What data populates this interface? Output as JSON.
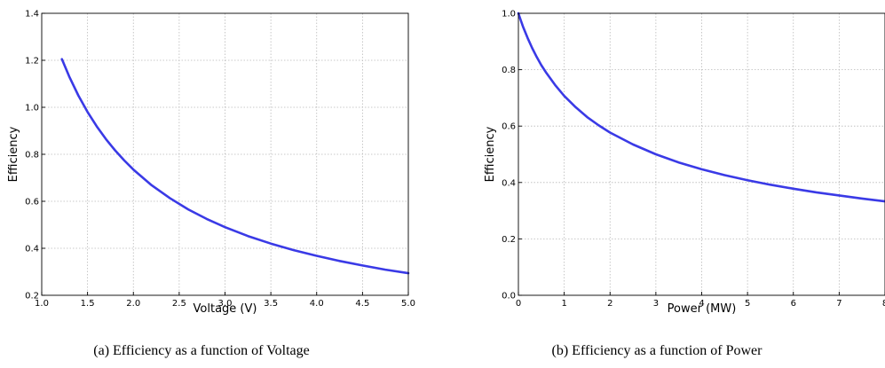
{
  "chart_data": [
    {
      "type": "line",
      "xlabel": "Voltage (V)",
      "ylabel": "Efficiency",
      "caption": "(a)  Efficiency as a function of Voltage",
      "xlim": [
        1.0,
        5.0
      ],
      "ylim": [
        0.2,
        1.4
      ],
      "xticks": [
        "1.0",
        "1.5",
        "2.0",
        "2.5",
        "3.0",
        "3.5",
        "4.0",
        "4.5",
        "5.0"
      ],
      "yticks": [
        "0.2",
        "0.4",
        "0.6",
        "0.8",
        "1.0",
        "1.2",
        "1.4"
      ],
      "grid": true,
      "series": [
        {
          "color": "#3a3ae6",
          "x": [
            1.22,
            1.3,
            1.4,
            1.5,
            1.6,
            1.7,
            1.8,
            1.9,
            2.0,
            2.2,
            2.4,
            2.6,
            2.8,
            3.0,
            3.25,
            3.5,
            3.75,
            4.0,
            4.25,
            4.5,
            4.75,
            5.0
          ],
          "y": [
            1.205,
            1.131,
            1.05,
            0.98,
            0.919,
            0.865,
            0.817,
            0.774,
            0.735,
            0.668,
            0.613,
            0.565,
            0.525,
            0.49,
            0.452,
            0.42,
            0.392,
            0.368,
            0.346,
            0.327,
            0.309,
            0.294
          ]
        }
      ]
    },
    {
      "type": "line",
      "xlabel": "Power (MW)",
      "ylabel": "Efficiency",
      "caption": "(b)  Efficiency as a function of Power",
      "xlim": [
        0,
        8
      ],
      "ylim": [
        0.0,
        1.0
      ],
      "xticks": [
        "0",
        "1",
        "2",
        "3",
        "4",
        "5",
        "6",
        "7",
        "8"
      ],
      "yticks": [
        "0.0",
        "0.2",
        "0.4",
        "0.6",
        "0.8",
        "1.0"
      ],
      "grid": true,
      "series": [
        {
          "color": "#3a3ae6",
          "x": [
            0.0,
            0.05,
            0.1,
            0.2,
            0.3,
            0.4,
            0.5,
            0.6,
            0.8,
            1.0,
            1.25,
            1.5,
            1.75,
            2.0,
            2.5,
            3.0,
            3.5,
            4.0,
            4.5,
            5.0,
            5.5,
            6.0,
            6.5,
            7.0,
            7.5,
            8.0
          ],
          "y": [
            1.0,
            0.976,
            0.953,
            0.913,
            0.877,
            0.845,
            0.816,
            0.791,
            0.746,
            0.707,
            0.667,
            0.632,
            0.603,
            0.577,
            0.535,
            0.5,
            0.471,
            0.447,
            0.426,
            0.408,
            0.392,
            0.378,
            0.365,
            0.354,
            0.343,
            0.333
          ]
        }
      ]
    }
  ]
}
